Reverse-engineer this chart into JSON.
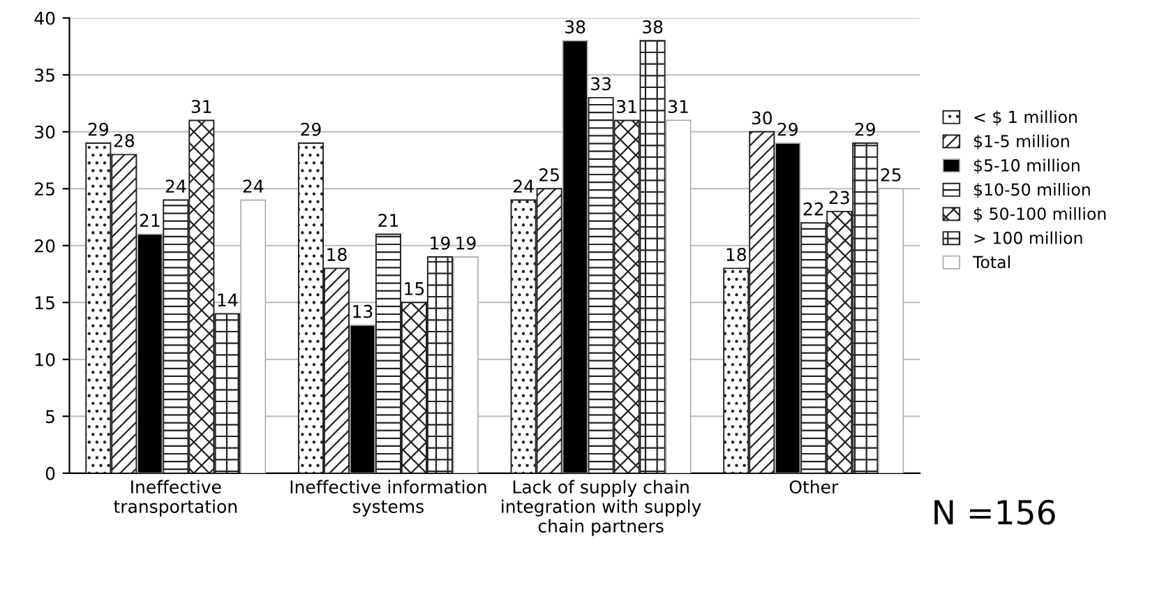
{
  "chart_data": {
    "type": "bar",
    "categories": [
      "Ineffective\ntransportation",
      "Ineffective information\nsystems",
      "Lack of supply chain\nintegration with supply\nchain partners",
      "Other"
    ],
    "series": [
      {
        "name": "< $ 1 million",
        "color": "#222222",
        "values": [
          29,
          29,
          24,
          18
        ]
      },
      {
        "name": "$1-5 million",
        "color": "#222222",
        "values": [
          28,
          18,
          25,
          30
        ]
      },
      {
        "name": "$5-10 million",
        "color": "#000000",
        "values": [
          21,
          13,
          38,
          29
        ]
      },
      {
        "name": "$10-50 million",
        "color": "#222222",
        "values": [
          24,
          21,
          33,
          22
        ]
      },
      {
        "name": "$ 50-100 million",
        "color": "#222222",
        "values": [
          31,
          15,
          31,
          23
        ]
      },
      {
        "name": "> 100 million",
        "color": "#222222",
        "values": [
          14,
          19,
          38,
          29
        ]
      },
      {
        "name": "Total",
        "color": "#ffffff",
        "values": [
          24,
          19,
          31,
          25
        ]
      }
    ],
    "ylim": [
      0,
      40
    ],
    "yticks": [
      0,
      5,
      10,
      15,
      20,
      25,
      30,
      35,
      40
    ],
    "grid": "y",
    "legend": "right",
    "data_labels": true,
    "annotations": [
      "N =156"
    ]
  }
}
